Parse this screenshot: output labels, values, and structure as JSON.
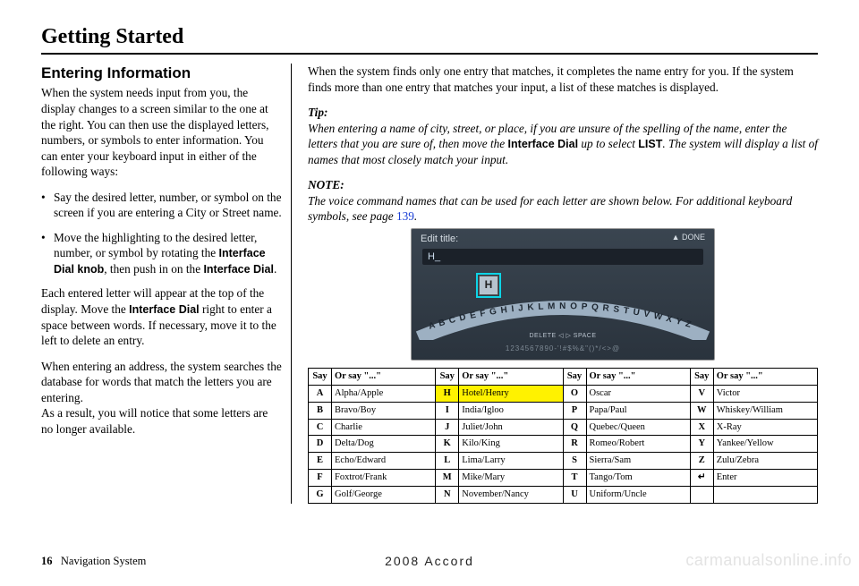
{
  "chapter": "Getting Started",
  "heading": "Entering Information",
  "left": {
    "p1": "When the system needs input from you, the display changes to a screen similar to the one at the right. You can then use the displayed letters, numbers, or symbols to enter information. You can enter your keyboard input in either of the following ways:",
    "b1": "Say the desired letter, number, or symbol on the screen if you are entering a City or Street name.",
    "b2a": "Move the highlighting to the desired letter, number, or symbol by rotating the ",
    "b2b_sans": "Interface Dial knob",
    "b2c": ", then push in on the ",
    "b2d_sans": "Interface Dial",
    "b2e": ".",
    "p2a": "Each entered letter will appear at the top of the display. Move the ",
    "p2b_sans": "Interface Dial",
    "p2c": " right to enter a space between words. If necessary, move it to the left to delete an entry.",
    "p3": "When entering an address, the system searches the database for words that match the letters you are entering.",
    "p4": "As a result, you will notice that some letters are no longer available."
  },
  "right": {
    "p1": "When the system finds only one entry that matches, it completes the name entry for you. If the system finds more than one entry that matches your input, a list of these matches is displayed.",
    "tip_label": "Tip:",
    "tip_a": "When entering a name of city, street, or place, if you are unsure of the spelling of the name, enter the letters that you are sure of, then move the ",
    "tip_b_sans": "Interface Dial",
    "tip_c": " up to select ",
    "tip_d_sans": "LIST",
    "tip_e": ". The system will display a list of names that most closely match your input.",
    "note_label": "NOTE:",
    "note_a": "The voice command names that can be used for each letter are shown below. For additional keyboard symbols, see page ",
    "note_link": "139",
    "note_b": "."
  },
  "screenshot": {
    "title": "Edit title:",
    "done": "▲ DONE",
    "input": "H_",
    "key": "H",
    "letters": "A B C D E F G H I J K L M N O P Q R S T U V W X Y Z",
    "delspace": "DELETE ◁   ▷ SPACE",
    "nums": "1234567890-'!#$%&\"()*/<>@"
  },
  "table": {
    "headers": [
      "Say",
      "Or say \"...\"",
      "Say",
      "Or say \"...\"",
      "Say",
      "Or say \"...\"",
      "Say",
      "Or say \"...\""
    ],
    "rows": [
      [
        "A",
        "Alpha/Apple",
        "H",
        "Hotel/Henry",
        "O",
        "Oscar",
        "V",
        "Victor"
      ],
      [
        "B",
        "Bravo/Boy",
        "I",
        "India/Igloo",
        "P",
        "Papa/Paul",
        "W",
        "Whiskey/William"
      ],
      [
        "C",
        "Charlie",
        "J",
        "Juliet/John",
        "Q",
        "Quebec/Queen",
        "X",
        "X-Ray"
      ],
      [
        "D",
        "Delta/Dog",
        "K",
        "Kilo/King",
        "R",
        "Romeo/Robert",
        "Y",
        "Yankee/Yellow"
      ],
      [
        "E",
        "Echo/Edward",
        "L",
        "Lima/Larry",
        "S",
        "Sierra/Sam",
        "Z",
        "Zulu/Zebra"
      ],
      [
        "F",
        "Foxtrot/Frank",
        "M",
        "Mike/Mary",
        "T",
        "Tango/Tom",
        "↵",
        "Enter"
      ],
      [
        "G",
        "Golf/George",
        "N",
        "November/Nancy",
        "U",
        "Uniform/Uncle",
        "",
        ""
      ]
    ],
    "highlight": {
      "row": 0,
      "colStart": 2
    }
  },
  "footer": {
    "page": "16",
    "title": "Navigation System"
  },
  "center_bottom": "2008 Accord",
  "watermark": "carmanualsonline.info"
}
